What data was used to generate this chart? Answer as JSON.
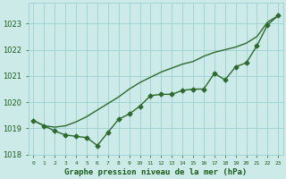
{
  "hours": [
    0,
    1,
    2,
    3,
    4,
    5,
    6,
    7,
    8,
    9,
    10,
    11,
    12,
    13,
    14,
    15,
    16,
    17,
    18,
    19,
    20,
    21,
    22,
    23
  ],
  "line_markers": [
    1019.3,
    1019.1,
    1018.9,
    1018.75,
    1018.7,
    1018.65,
    1018.35,
    1018.85,
    1019.35,
    1019.55,
    1019.85,
    1020.25,
    1020.3,
    1020.3,
    1020.45,
    1020.5,
    1020.5,
    1021.1,
    1020.85,
    1021.35,
    1021.5,
    1022.15,
    1022.95,
    1023.3
  ],
  "line_smooth": [
    1019.3,
    1019.1,
    1019.05,
    1019.1,
    1019.25,
    1019.45,
    1019.7,
    1019.95,
    1020.2,
    1020.5,
    1020.75,
    1020.95,
    1021.15,
    1021.3,
    1021.45,
    1021.55,
    1021.75,
    1021.9,
    1022.0,
    1022.1,
    1022.25,
    1022.5,
    1023.05,
    1023.3
  ],
  "line_color": "#2d6a2d",
  "bg_color": "#cceae7",
  "grid_color": "#9ecece",
  "text_color": "#1a5c1a",
  "ylim": [
    1018.0,
    1023.8
  ],
  "yticks": [
    1018,
    1019,
    1020,
    1021,
    1022,
    1023
  ],
  "xlabel": "Graphe pression niveau de la mer (hPa)",
  "marker": "D",
  "markersize": 2.5,
  "linewidth": 1.0
}
